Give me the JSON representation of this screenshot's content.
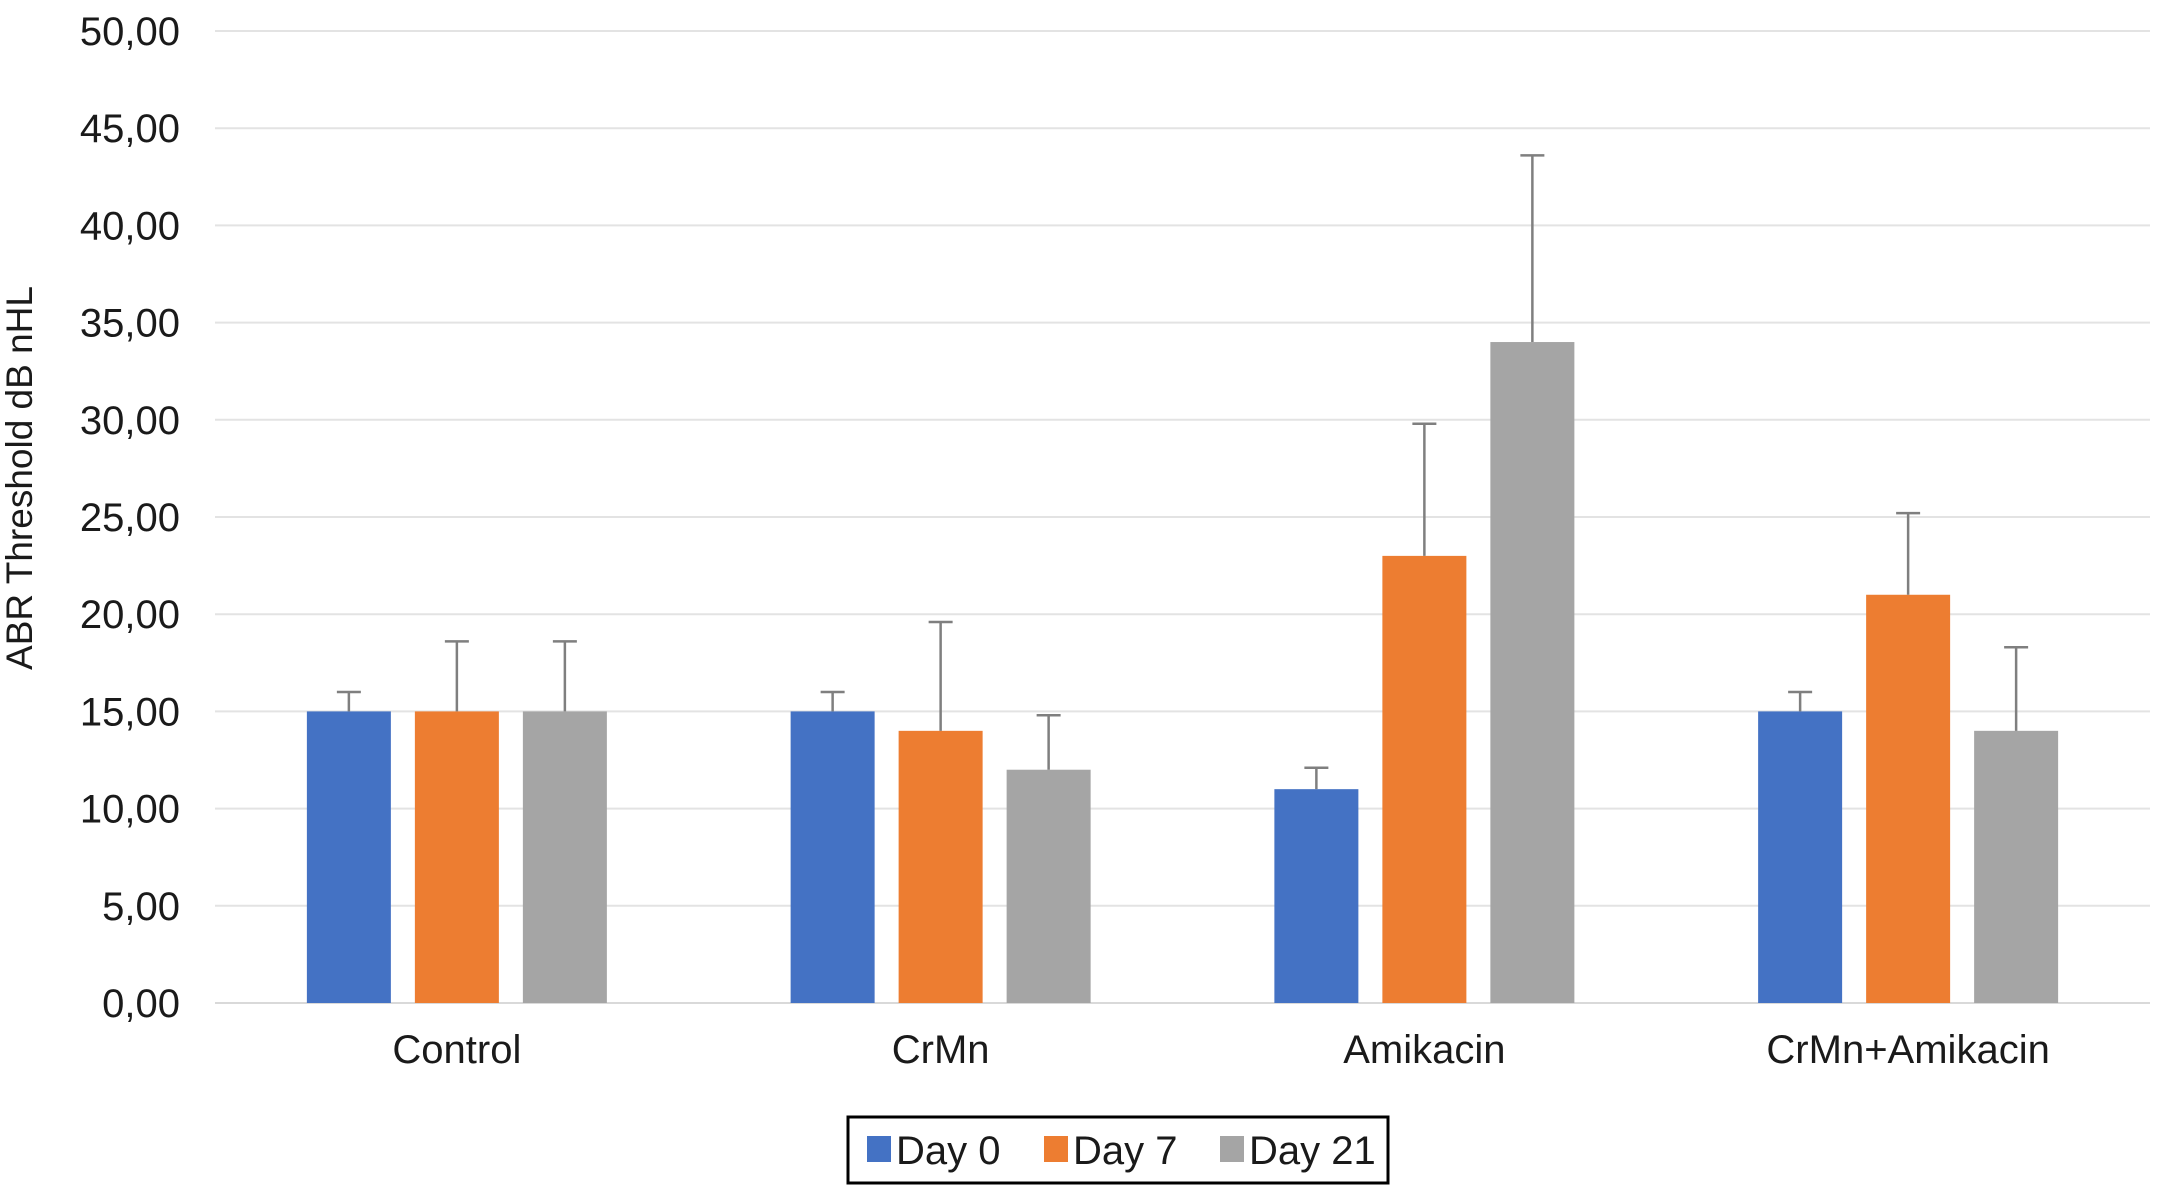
{
  "chart_data": {
    "type": "bar",
    "title": "",
    "xlabel": "",
    "ylabel": "ABR Threshold dB nHL",
    "ylim": [
      0,
      50
    ],
    "y_ticks": [
      "0,00",
      "5,00",
      "10,00",
      "15,00",
      "20,00",
      "25,00",
      "30,00",
      "35,00",
      "40,00",
      "45,00",
      "50,00"
    ],
    "grid": true,
    "legend_position": "bottom",
    "categories": [
      "Control",
      "CrMn",
      "Amikacin",
      "CrMn+Amikacin"
    ],
    "series": [
      {
        "name": "Day 0",
        "color": "#4472C4",
        "values": [
          15,
          15,
          11,
          15
        ],
        "error_upper": [
          1.0,
          1.0,
          1.1,
          1.0
        ]
      },
      {
        "name": "Day 7",
        "color": "#ED7D31",
        "values": [
          15,
          14,
          23,
          21
        ],
        "error_upper": [
          3.6,
          5.6,
          6.8,
          4.2
        ]
      },
      {
        "name": "Day 21",
        "color": "#A5A5A5",
        "values": [
          15,
          12,
          34,
          14
        ],
        "error_upper": [
          3.6,
          2.8,
          9.6,
          4.3
        ]
      }
    ]
  }
}
